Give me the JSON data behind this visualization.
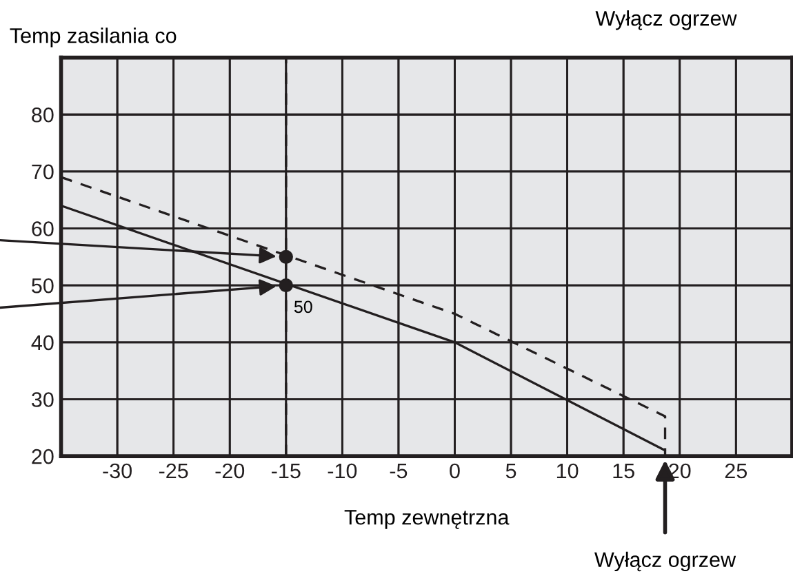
{
  "chart_data": {
    "type": "line",
    "xlabel": "Temp zewnętrzna",
    "ylabel": "Temp zasilania co",
    "xlim": [
      -35,
      30
    ],
    "ylim": [
      20,
      90
    ],
    "xticks": [
      -30,
      -25,
      -20,
      -15,
      -10,
      -5,
      0,
      5,
      10,
      15,
      20,
      25
    ],
    "yticks": [
      20,
      30,
      40,
      50,
      60,
      70,
      80
    ],
    "grid": true,
    "series": [
      {
        "color": "#231f20",
        "line_style": "solid",
        "x": [
          -35,
          0,
          18.7,
          18.7
        ],
        "values": [
          64,
          40,
          21,
          20
        ]
      },
      {
        "color": "#231f20",
        "line_style": "dashed",
        "x": [
          -35,
          0,
          18.7,
          18.7
        ],
        "values": [
          69,
          45,
          27,
          21
        ]
      },
      {
        "type": "scatter",
        "color": "#231f20",
        "marker": "circle",
        "x": [
          -15,
          -15
        ],
        "values": [
          55,
          50
        ]
      }
    ],
    "ref_lines": [
      {
        "axis": "x",
        "value": -15,
        "color": "#231f20",
        "line_style": "dashed"
      }
    ],
    "annotations": [
      "Wyłącz ogrzew",
      {
        "text": "50",
        "x": -15,
        "y": 50
      },
      {
        "text": "Wyłącz ogrzew",
        "x": 18.7,
        "y": 20
      }
    ]
  }
}
